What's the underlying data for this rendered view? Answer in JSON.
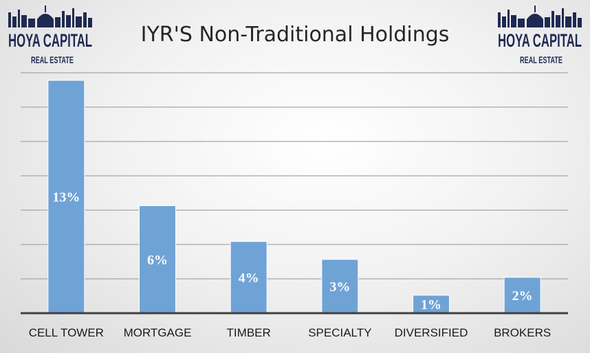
{
  "logos": {
    "left": {
      "main": "HOYA CAPITAL",
      "sub": "REAL ESTATE"
    },
    "right": {
      "main": "HOYA CAPITAL",
      "sub": "REAL ESTATE"
    }
  },
  "colors": {
    "bar": "#6fa3d6",
    "logo": "#1f2a52"
  },
  "chart_data": {
    "type": "bar",
    "title": "IYR'S Non-Traditional Holdings",
    "categories": [
      "CELL TOWER",
      "MORTGAGE",
      "TIMBER",
      "SPECIALTY",
      "DIVERSIFIED",
      "BROKERS"
    ],
    "values": [
      13,
      6,
      4,
      3,
      1,
      2
    ],
    "data_labels": [
      "13%",
      "6%",
      "4%",
      "3%",
      "1%",
      "2%"
    ],
    "ylim": [
      0,
      13.5
    ],
    "grid": true,
    "legend": "none",
    "xlabel": "",
    "ylabel": ""
  }
}
